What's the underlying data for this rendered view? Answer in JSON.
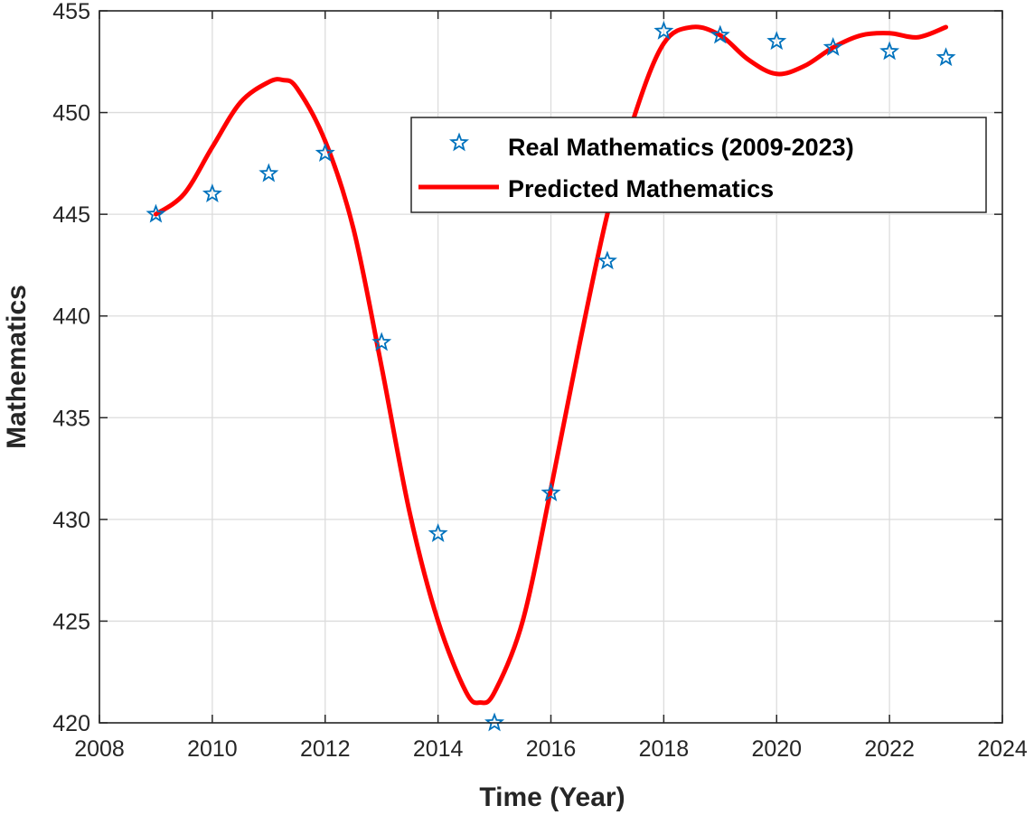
{
  "chart_data": {
    "type": "line",
    "xlabel": "Time (Year)",
    "ylabel": "Mathematics",
    "xlim": [
      2008,
      2024
    ],
    "ylim": [
      420,
      455
    ],
    "xticks": [
      2008,
      2010,
      2012,
      2014,
      2016,
      2018,
      2020,
      2022,
      2024
    ],
    "yticks": [
      420,
      425,
      430,
      435,
      440,
      445,
      450,
      455
    ],
    "grid": true,
    "legend_position": "upper-right inside",
    "series": [
      {
        "name": "Real Mathematics (2009-2023)",
        "kind": "scatter",
        "marker": "star",
        "color": "#0072BD",
        "x": [
          2009,
          2010,
          2011,
          2012,
          2013,
          2014,
          2015,
          2016,
          2017,
          2018,
          2019,
          2020,
          2021,
          2022,
          2023
        ],
        "y": [
          445.0,
          446.0,
          447.0,
          448.0,
          438.7,
          429.3,
          420.0,
          431.3,
          442.7,
          454.0,
          453.8,
          453.5,
          453.2,
          453.0,
          452.7
        ]
      },
      {
        "name": "Predicted Mathematics",
        "kind": "line",
        "color": "#FF0000",
        "x": [
          2009.0,
          2009.5,
          2010.0,
          2010.5,
          2011.0,
          2011.25,
          2011.5,
          2012.0,
          2012.5,
          2013.0,
          2013.5,
          2014.0,
          2014.5,
          2014.75,
          2015.0,
          2015.5,
          2016.0,
          2016.5,
          2017.0,
          2017.5,
          2018.0,
          2018.5,
          2019.0,
          2019.5,
          2020.0,
          2020.5,
          2021.0,
          2021.5,
          2022.0,
          2022.5,
          2023.0
        ],
        "y": [
          445.0,
          446.0,
          448.3,
          450.5,
          451.5,
          451.6,
          451.2,
          448.6,
          444.3,
          437.5,
          430.3,
          425.0,
          421.5,
          421.0,
          421.5,
          425.0,
          431.5,
          438.5,
          445.0,
          450.0,
          453.4,
          454.2,
          453.8,
          452.6,
          451.9,
          452.3,
          453.2,
          453.8,
          453.9,
          453.7,
          454.2
        ]
      }
    ]
  }
}
